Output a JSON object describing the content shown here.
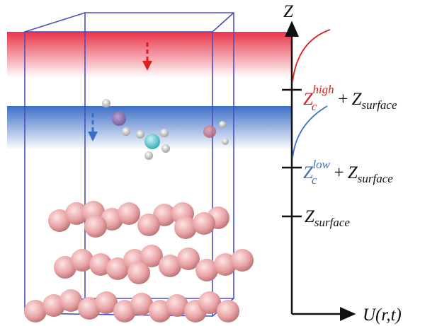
{
  "axis": {
    "vertical_label": "Z",
    "horizontal_label": "U(r,t)"
  },
  "levels": [
    {
      "base": "Z",
      "subscript": "c",
      "superscript": "high",
      "plus": "+",
      "term": "Z",
      "term_subscript": "surface"
    },
    {
      "base": "Z",
      "subscript": "c",
      "superscript": "low",
      "plus": "+",
      "term": "Z",
      "term_subscript": "surface"
    },
    {
      "base": "Z",
      "subscript": "surface"
    }
  ]
}
